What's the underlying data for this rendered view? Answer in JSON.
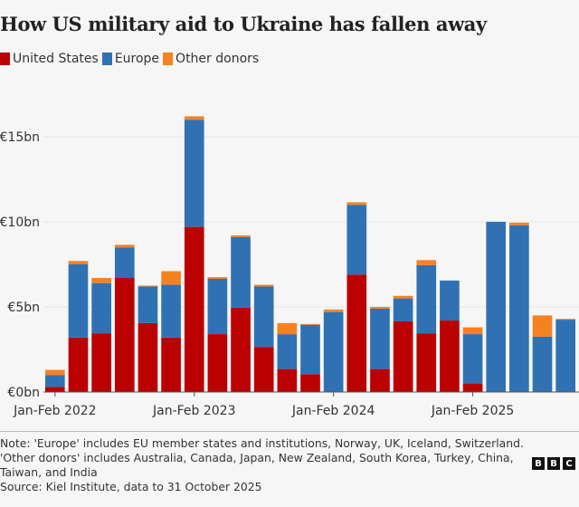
{
  "chart_data": {
    "type": "bar",
    "stacked": true,
    "title": "How US military aid to Ukraine has fallen away",
    "xlabel": "",
    "ylabel": "",
    "ylim": [
      0,
      16.5
    ],
    "y_ticks": [
      0,
      5,
      10,
      15
    ],
    "y_tick_labels": [
      "€0bn",
      "€5bn",
      "€10bn",
      "€15bn"
    ],
    "x_tick_labels": [
      {
        "index": 0,
        "label": "Jan-Feb 2022"
      },
      {
        "index": 6,
        "label": "Jan-Feb 2023"
      },
      {
        "index": 12,
        "label": "Jan-Feb 2024"
      },
      {
        "index": 18,
        "label": "Jan-Feb 2025"
      }
    ],
    "grid": true,
    "legend_position": "top-left",
    "categories": [
      "Jan-Feb 2022",
      "Mar-Apr 2022",
      "May-Jun 2022",
      "Jul-Aug 2022",
      "Sep-Oct 2022",
      "Nov-Dec 2022",
      "Jan-Feb 2023",
      "Mar-Apr 2023",
      "May-Jun 2023",
      "Jul-Aug 2023",
      "Sep-Oct 2023",
      "Nov-Dec 2023",
      "Jan-Feb 2024",
      "Mar-Apr 2024",
      "May-Jun 2024",
      "Jul-Aug 2024",
      "Sep-Oct 2024",
      "Nov-Dec 2024",
      "Jan-Feb 2025",
      "Mar-Apr 2025",
      "May-Jun 2025",
      "Jul-Aug 2025",
      "Sep-Oct 2025"
    ],
    "series": [
      {
        "name": "United States",
        "color": "#bb0000",
        "values": [
          0.3,
          3.2,
          3.45,
          6.7,
          4.05,
          3.2,
          9.7,
          3.4,
          4.95,
          2.65,
          1.35,
          1.05,
          0,
          6.9,
          1.35,
          4.15,
          3.45,
          4.2,
          0.5,
          0,
          0,
          0,
          0
        ]
      },
      {
        "name": "Europe",
        "color": "#3071b3",
        "values": [
          0.7,
          4.3,
          2.95,
          1.8,
          2.15,
          3.1,
          6.3,
          3.25,
          4.15,
          3.55,
          2.05,
          2.9,
          4.7,
          4.1,
          3.55,
          1.35,
          4.0,
          2.35,
          2.9,
          10.0,
          9.8,
          3.25,
          4.25
        ]
      },
      {
        "name": "Other donors",
        "color": "#f58220",
        "values": [
          0.3,
          0.2,
          0.3,
          0.15,
          0.05,
          0.8,
          0.2,
          0.1,
          0.1,
          0.1,
          0.65,
          0.05,
          0.15,
          0.15,
          0.1,
          0.15,
          0.3,
          0,
          0.4,
          0,
          0.15,
          1.25,
          0.05
        ]
      }
    ]
  },
  "legend": [
    {
      "label": "United States",
      "color": "#bb0000"
    },
    {
      "label": "Europe",
      "color": "#3071b3"
    },
    {
      "label": "Other donors",
      "color": "#f58220"
    }
  ],
  "footer": {
    "note_1": "Note: 'Europe' includes EU member states and institutions, Norway, UK, Iceland, Switzerland.",
    "note_2": "'Other donors' includes Australia, Canada, Japan, New Zealand, South Korea, Turkey, China, Taiwan, and India",
    "source": "Source: Kiel Institute, data to 31 October 2025",
    "logo": [
      "B",
      "B",
      "C"
    ]
  }
}
